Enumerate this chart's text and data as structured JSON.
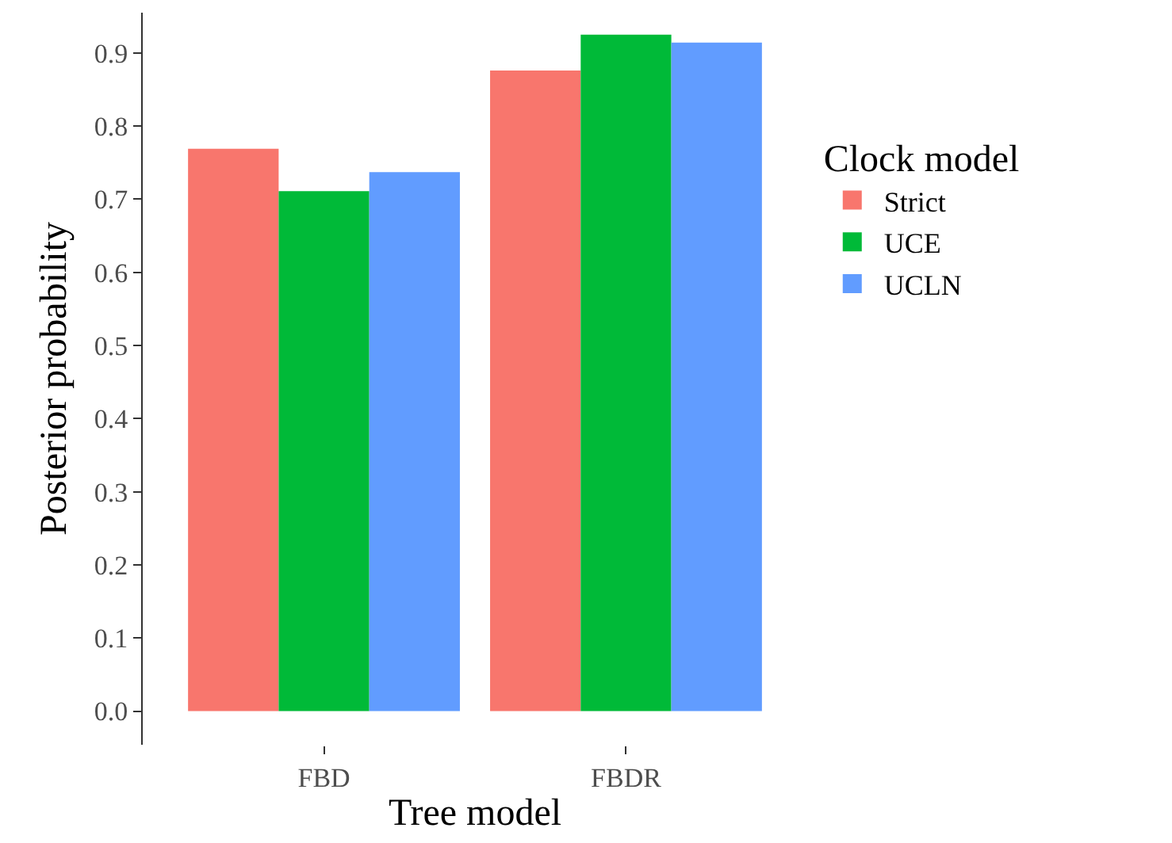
{
  "chart_data": {
    "type": "bar",
    "xlabel": "Tree model",
    "ylabel": "Posterior probability",
    "legend_title": "Clock model",
    "categories": [
      "FBD",
      "FBDR"
    ],
    "series": [
      {
        "name": "Strict",
        "color": "#f8766d",
        "values": [
          0.769,
          0.876
        ]
      },
      {
        "name": "UCE",
        "color": "#00ba38",
        "values": [
          0.711,
          0.925
        ]
      },
      {
        "name": "UCLN",
        "color": "#619cff",
        "values": [
          0.737,
          0.914
        ]
      }
    ],
    "ylim": [
      -0.046,
      0.955
    ],
    "yticks": [
      {
        "value": 0,
        "label": "0.0"
      },
      0.1,
      0.2,
      0.3,
      0.4,
      0.5,
      0.6,
      0.7,
      0.8,
      0.9
    ],
    "grid": false,
    "legend": "right"
  }
}
